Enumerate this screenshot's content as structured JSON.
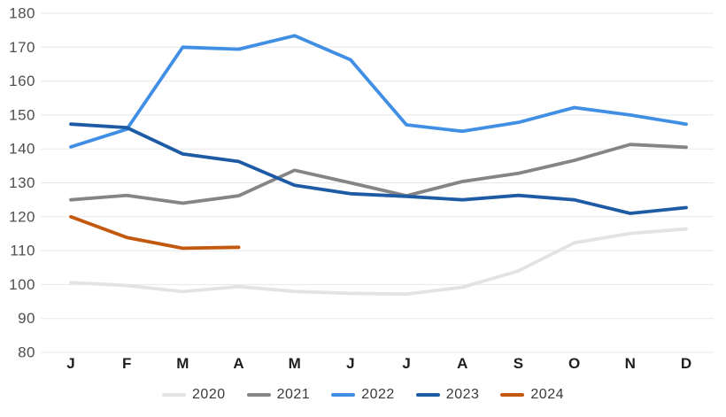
{
  "chart_data": {
    "type": "line",
    "title": "",
    "xlabel": "",
    "ylabel": "",
    "categories": [
      "J",
      "F",
      "M",
      "A",
      "M",
      "J",
      "J",
      "A",
      "S",
      "O",
      "N",
      "D"
    ],
    "y_ticks": [
      180,
      170,
      160,
      150,
      140,
      130,
      120,
      110,
      100,
      90,
      80
    ],
    "ylim": [
      80,
      180
    ],
    "grid": true,
    "legend_position": "bottom",
    "series": [
      {
        "name": "2020",
        "color": "#e3e3e3",
        "values": [
          100.6,
          99.7,
          97.9,
          99.4,
          98.0,
          97.4,
          97.2,
          99.2,
          104.0,
          112.3,
          115.1,
          116.4
        ]
      },
      {
        "name": "2021",
        "color": "#858585",
        "values": [
          125.0,
          126.3,
          124.0,
          126.2,
          133.7,
          130.0,
          126.2,
          130.4,
          132.8,
          136.6,
          141.3,
          140.5
        ]
      },
      {
        "name": "2022",
        "color": "#418fe4",
        "values": [
          140.6,
          145.8,
          170.0,
          169.4,
          173.4,
          166.3,
          147.1,
          145.2,
          147.8,
          152.2,
          150.0,
          147.3
        ]
      },
      {
        "name": "2023",
        "color": "#1e5ba5",
        "values": [
          147.3,
          146.3,
          138.5,
          136.3,
          129.3,
          126.8,
          126.0,
          125.0,
          126.3,
          125.0,
          121.0,
          122.7
        ]
      },
      {
        "name": "2024",
        "color": "#c2590f",
        "values": [
          120.0,
          113.9,
          110.7,
          111.0
        ]
      }
    ]
  },
  "colors": {
    "background": "#ffffff",
    "gridline": "#e8e8e8",
    "y_label": "#4f4f4f",
    "x_label": "#1f1f1f"
  }
}
